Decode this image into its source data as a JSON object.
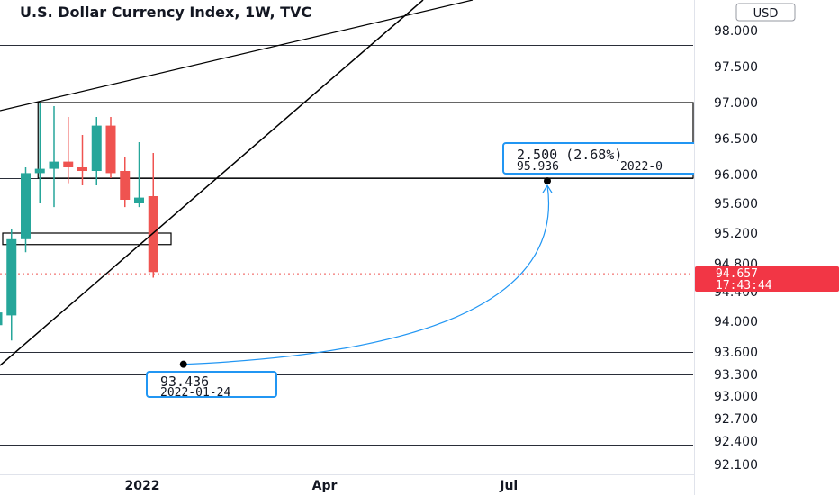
{
  "header": {
    "title": "U.S. Dollar Currency Index, 1W, TVC"
  },
  "currency_button": "USD",
  "price_tag": {
    "price": "94.657",
    "countdown": "17:43:44",
    "color": "#f23645"
  },
  "callout_top": {
    "main": "2.500 (2.68%)",
    "price": "95.936",
    "date": "2022-0",
    "color": "#2196f3"
  },
  "callout_bottom": {
    "price": "93.436",
    "date": "2022-01-24",
    "color": "#2196f3"
  },
  "colors": {
    "up": "#26a69a",
    "down": "#ef5350",
    "current_price_line": "#ef5350",
    "drawing": "#000000"
  },
  "chart_data": {
    "type": "candlestick",
    "title": "U.S. Dollar Currency Index, 1W, TVC",
    "y_ticks": [
      "98.000",
      "97.500",
      "97.000",
      "96.500",
      "96.000",
      "95.600",
      "95.200",
      "94.800",
      "94.400",
      "94.000",
      "93.600",
      "93.300",
      "93.000",
      "92.700",
      "92.400",
      "92.100"
    ],
    "y_tick_values": [
      98.0,
      97.5,
      97.0,
      96.5,
      96.0,
      95.6,
      95.2,
      94.8,
      94.4,
      94.0,
      93.6,
      93.3,
      93.0,
      92.7,
      92.4,
      92.1
    ],
    "x_ticks": [
      "2022",
      "Apr",
      "Jul"
    ],
    "x_tick_dates": [
      "2022-01-01",
      "2022-04-01",
      "2022-07-01"
    ],
    "horizontal_levels": [
      97.8,
      97.5,
      97.0,
      95.95,
      93.6,
      93.3,
      92.7,
      92.35
    ],
    "candles": [
      {
        "date": "2021-10-25",
        "open": 93.95,
        "high": 94.35,
        "low": 93.65,
        "close": 94.12
      },
      {
        "date": "2021-11-01",
        "open": 94.08,
        "high": 95.25,
        "low": 93.75,
        "close": 95.12
      },
      {
        "date": "2021-11-08",
        "open": 95.12,
        "high": 96.1,
        "low": 94.95,
        "close": 96.02
      },
      {
        "date": "2021-11-15",
        "open": 96.02,
        "high": 97.0,
        "low": 95.6,
        "close": 96.08
      },
      {
        "date": "2021-11-22",
        "open": 96.08,
        "high": 96.95,
        "low": 95.55,
        "close": 96.18
      },
      {
        "date": "2021-11-29",
        "open": 96.18,
        "high": 96.8,
        "low": 95.88,
        "close": 96.1
      },
      {
        "date": "2021-12-06",
        "open": 96.1,
        "high": 96.55,
        "low": 95.85,
        "close": 96.05
      },
      {
        "date": "2021-12-13",
        "open": 96.05,
        "high": 96.8,
        "low": 95.85,
        "close": 96.68
      },
      {
        "date": "2021-12-20",
        "open": 96.68,
        "high": 96.8,
        "low": 95.95,
        "close": 96.02
      },
      {
        "date": "2021-12-27",
        "open": 96.05,
        "high": 96.25,
        "low": 95.55,
        "close": 95.65
      },
      {
        "date": "2022-01-03",
        "open": 95.6,
        "high": 96.45,
        "low": 95.55,
        "close": 95.68
      },
      {
        "date": "2022-01-10",
        "open": 95.7,
        "high": 96.3,
        "low": 94.6,
        "close": 94.68
      }
    ],
    "current_price": 94.657,
    "measure": {
      "from_date": "2022-01-24",
      "from_price": 93.436,
      "to_price": 95.936,
      "change": "2.500",
      "change_pct": "2.68%"
    }
  }
}
